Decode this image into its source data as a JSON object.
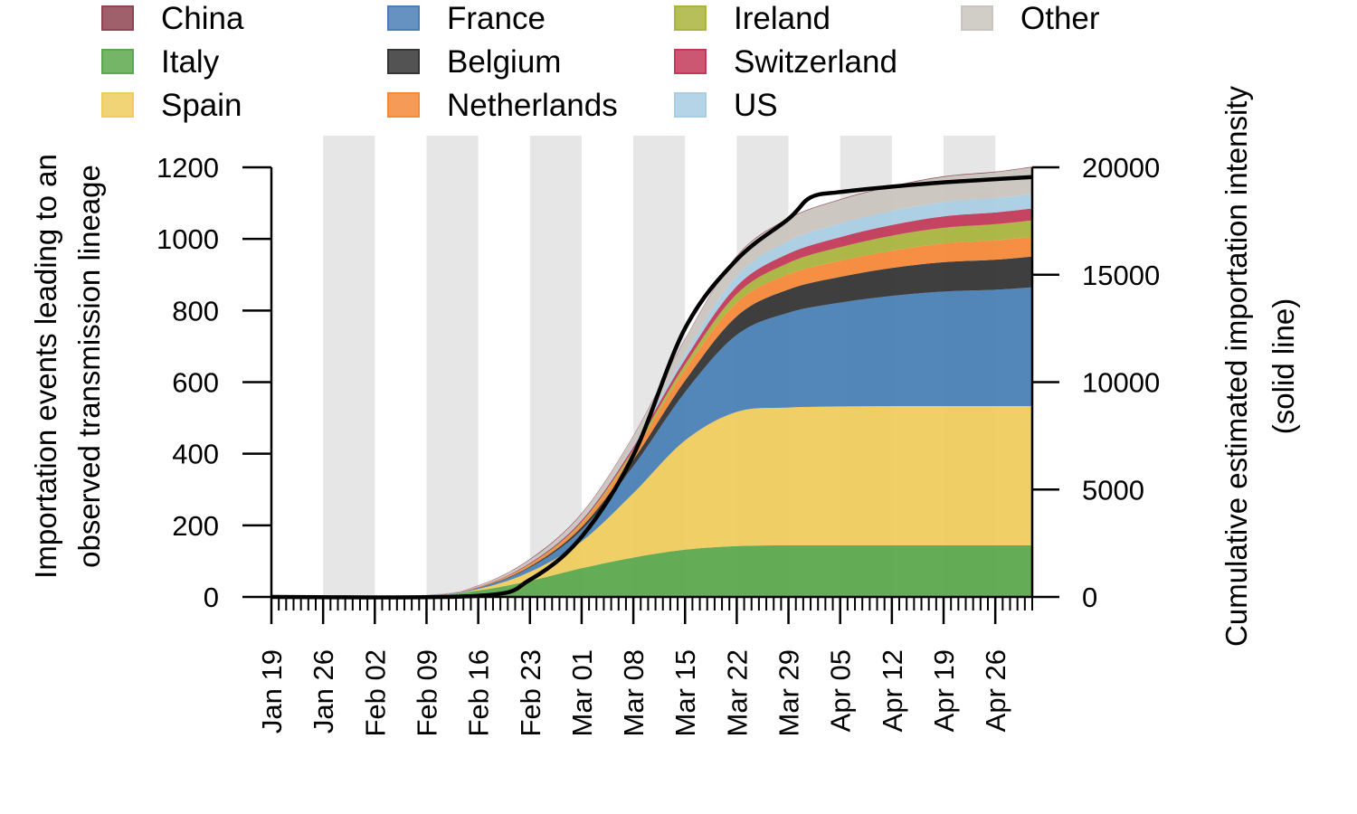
{
  "chart_data": {
    "type": "area",
    "stacked": true,
    "dual_axis": true,
    "legend": {
      "placement": "top",
      "columns": [
        [
          "China",
          "Italy",
          "Spain"
        ],
        [
          "France",
          "Belgium",
          "Netherlands"
        ],
        [
          "Ireland",
          "Switzerland",
          "US"
        ],
        [
          "Other"
        ]
      ]
    },
    "ylabel_left": [
      "Importation events leading to an",
      "observed transmission lineage"
    ],
    "ylabel_right": [
      "Cumulative estimated importation intensity",
      "(solid line)"
    ],
    "ylim_left": [
      0,
      1200
    ],
    "ylim_right": [
      0,
      20000
    ],
    "yticks_left": [
      "0",
      "200",
      "400",
      "600",
      "800",
      "1000",
      "1200"
    ],
    "yticks_right": [
      "0",
      "5000",
      "10000",
      "15000",
      "20000"
    ],
    "xlim_days": [
      "2020-01-19",
      "2020-05-01"
    ],
    "xtick_labels": [
      "Jan 19",
      "Jan 26",
      "Feb 02",
      "Feb 09",
      "Feb 16",
      "Feb 23",
      "Mar 01",
      "Mar 08",
      "Mar 15",
      "Mar 22",
      "Mar 29",
      "Apr 05",
      "Apr 12",
      "Apr 19",
      "Apr 26"
    ],
    "shaded_weeks": [
      "Jan 26",
      "Feb 09",
      "Feb 23",
      "Mar 08",
      "Mar 22",
      "Apr 05",
      "Apr 19"
    ],
    "x": [
      "Jan 19",
      "Feb 09",
      "Feb 16",
      "Feb 23",
      "Mar 01",
      "Mar 08",
      "Mar 15",
      "Mar 22",
      "Mar 29",
      "Apr 05",
      "Apr 12",
      "Apr 19",
      "Apr 26",
      "May 01"
    ],
    "series": [
      {
        "name": "Italy",
        "color": "#5DA84E",
        "values": [
          0,
          4,
          18,
          45,
          80,
          110,
          132,
          142,
          144,
          144,
          144,
          144,
          144,
          144
        ]
      },
      {
        "name": "Spain",
        "color": "#EECC5E",
        "values": [
          0,
          0,
          4,
          25,
          75,
          180,
          305,
          375,
          385,
          388,
          389,
          389,
          389,
          389
        ]
      },
      {
        "name": "France",
        "color": "#4A7FB5",
        "values": [
          0,
          1,
          3,
          12,
          32,
          75,
          135,
          215,
          265,
          290,
          308,
          320,
          325,
          332
        ]
      },
      {
        "name": "Belgium",
        "color": "#353535",
        "values": [
          0,
          0,
          1,
          3,
          8,
          18,
          32,
          52,
          65,
          72,
          78,
          82,
          84,
          86
        ]
      },
      {
        "name": "Netherlands",
        "color": "#F5893A",
        "values": [
          0,
          0,
          1,
          5,
          10,
          20,
          30,
          38,
          42,
          45,
          48,
          52,
          54,
          55
        ]
      },
      {
        "name": "Ireland",
        "color": "#AAB43E",
        "values": [
          0,
          0,
          0,
          2,
          4,
          8,
          15,
          24,
          32,
          38,
          42,
          44,
          45,
          46
        ]
      },
      {
        "name": "Switzerland",
        "color": "#C23A5A",
        "values": [
          0,
          0,
          1,
          3,
          5,
          8,
          15,
          22,
          26,
          28,
          30,
          32,
          33,
          33
        ]
      },
      {
        "name": "US",
        "color": "#A9CDE3",
        "values": [
          0,
          0,
          0,
          1,
          3,
          5,
          15,
          28,
          35,
          38,
          39,
          40,
          40,
          40
        ]
      },
      {
        "name": "Other",
        "color": "#C9C5BE",
        "values": [
          0,
          1,
          3,
          8,
          15,
          25,
          40,
          55,
          62,
          66,
          68,
          70,
          72,
          75
        ]
      },
      {
        "name": "China",
        "color": "#8E4452",
        "values": [
          0,
          0,
          1,
          2,
          2,
          2,
          2,
          2,
          2,
          2,
          2,
          2,
          2,
          2
        ]
      }
    ],
    "line": {
      "axis": "right",
      "color": "#000000",
      "x": [
        "Jan 19",
        "Feb 16",
        "Feb 23",
        "Mar 01",
        "Mar 08",
        "Mar 15",
        "Mar 22",
        "Mar 29",
        "Apr 01",
        "Apr 05",
        "Apr 12",
        "Apr 19",
        "Apr 26",
        "May 01"
      ],
      "values": [
        0,
        50,
        800,
        2800,
        6600,
        12500,
        15700,
        17600,
        18600,
        18850,
        19100,
        19300,
        19450,
        19550
      ]
    }
  }
}
